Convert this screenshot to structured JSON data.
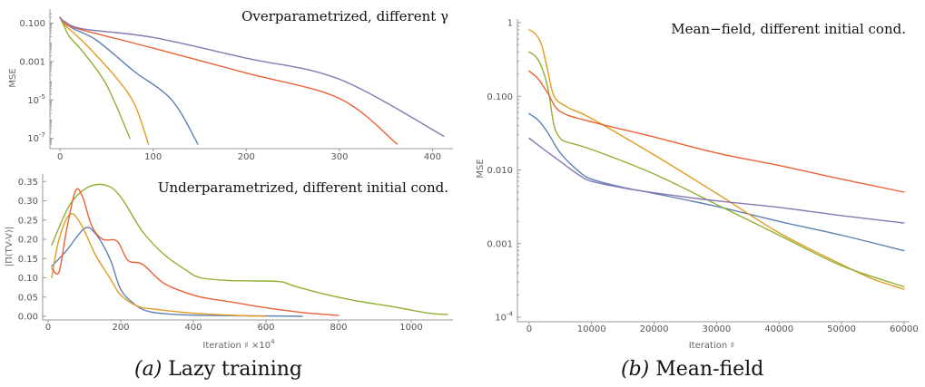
{
  "colors": {
    "blue": "#5e81b5",
    "orange": "#e19c24",
    "green": "#8fb032",
    "red": "#eb6235",
    "purple": "#8778b3"
  },
  "captions": {
    "a_prefix": "(a)",
    "a_text": " Lazy training",
    "b_prefix": "(b)",
    "b_text": " Mean-field"
  },
  "chart_data": [
    {
      "id": "a_top",
      "type": "line",
      "title": "Overparametrized, different γ",
      "xlabel": "",
      "ylabel": "MSE",
      "yscale": "log",
      "xlim": [
        -5,
        420
      ],
      "ylim": [
        5e-08,
        0.35
      ],
      "xticks": [
        0,
        100,
        200,
        300,
        400
      ],
      "yticks": [
        {
          "v": 0.1,
          "label": "0.100"
        },
        {
          "v": 0.001,
          "label": "0.001"
        },
        {
          "v": 1e-05,
          "label": "10",
          "sup": "-5"
        },
        {
          "v": 1e-07,
          "label": "10",
          "sup": "-7"
        }
      ],
      "series": [
        {
          "color": "blue",
          "x": [
            0,
            5,
            15,
            40,
            80,
            120,
            148
          ],
          "y": [
            0.2,
            0.1,
            0.05,
            0.012,
            0.0003,
            1e-05,
            5e-08
          ]
        },
        {
          "color": "orange",
          "x": [
            0,
            5,
            15,
            30,
            60,
            80,
            95
          ],
          "y": [
            0.2,
            0.08,
            0.03,
            0.006,
            0.00015,
            6e-06,
            5e-08
          ]
        },
        {
          "color": "green",
          "x": [
            0,
            5,
            10,
            25,
            50,
            75
          ],
          "y": [
            0.2,
            0.06,
            0.02,
            0.003,
            6e-05,
            1e-07
          ]
        },
        {
          "color": "red",
          "x": [
            0,
            5,
            20,
            100,
            200,
            300,
            362
          ],
          "y": [
            0.2,
            0.1,
            0.05,
            0.005,
            0.00025,
            1.2e-05,
            5e-08
          ]
        },
        {
          "color": "purple",
          "x": [
            0,
            5,
            25,
            100,
            200,
            300,
            412
          ],
          "y": [
            0.2,
            0.12,
            0.05,
            0.018,
            0.0015,
            0.00012,
            1.3e-07
          ]
        }
      ]
    },
    {
      "id": "a_bottom",
      "type": "line",
      "title": "Underparametrized, different initial cond.",
      "xlabel": "Iteration ♯ ×10",
      "xlabel_sup": "4",
      "ylabel": "|Π(TV-V)|",
      "yscale": "linear",
      "xlim": [
        0,
        1110
      ],
      "ylim": [
        0,
        0.36
      ],
      "xticks": [
        0,
        200,
        400,
        600,
        800,
        1000
      ],
      "yticks": [
        {
          "v": 0,
          "label": "0.00"
        },
        {
          "v": 0.05,
          "label": "0.05"
        },
        {
          "v": 0.1,
          "label": "0.10"
        },
        {
          "v": 0.15,
          "label": "0.15"
        },
        {
          "v": 0.2,
          "label": "0.20"
        },
        {
          "v": 0.25,
          "label": "0.25"
        },
        {
          "v": 0.3,
          "label": "0.30"
        },
        {
          "v": 0.35,
          "label": "0.35"
        }
      ],
      "series": [
        {
          "color": "blue",
          "x": [
            10,
            50,
            100,
            130,
            170,
            200,
            240,
            280,
            350,
            450,
            600,
            700
          ],
          "y": [
            0.13,
            0.17,
            0.228,
            0.215,
            0.15,
            0.07,
            0.03,
            0.012,
            0.005,
            0.002,
            0.001,
            0.0
          ]
        },
        {
          "color": "orange",
          "x": [
            10,
            30,
            60,
            90,
            130,
            170,
            200,
            250,
            300,
            400,
            500,
            600
          ],
          "y": [
            0.1,
            0.2,
            0.265,
            0.24,
            0.16,
            0.1,
            0.055,
            0.025,
            0.018,
            0.008,
            0.003,
            0.0
          ]
        },
        {
          "color": "green",
          "x": [
            10,
            60,
            110,
            160,
            200,
            260,
            320,
            380,
            420,
            500,
            560,
            640,
            680,
            760,
            850,
            950,
            1050,
            1100
          ],
          "y": [
            0.185,
            0.29,
            0.335,
            0.34,
            0.31,
            0.22,
            0.16,
            0.12,
            0.1,
            0.093,
            0.092,
            0.09,
            0.078,
            0.058,
            0.04,
            0.025,
            0.008,
            0.005
          ]
        },
        {
          "color": "red",
          "x": [
            10,
            30,
            50,
            75,
            95,
            120,
            150,
            190,
            220,
            260,
            320,
            400,
            450,
            500,
            600,
            700,
            800
          ],
          "y": [
            0.125,
            0.115,
            0.22,
            0.325,
            0.31,
            0.235,
            0.2,
            0.195,
            0.145,
            0.135,
            0.085,
            0.055,
            0.045,
            0.038,
            0.022,
            0.01,
            0.002
          ]
        }
      ]
    },
    {
      "id": "b",
      "type": "line",
      "title": "Mean−field, different initial cond.",
      "xlabel": "Iteration ♯",
      "ylabel": "MSE",
      "yscale": "log",
      "xlim": [
        -1000,
        60600
      ],
      "ylim": [
        0.0001,
        1
      ],
      "xticks": [
        0,
        10000,
        20000,
        30000,
        40000,
        50000,
        60000
      ],
      "xticklabels": [
        "0",
        "10000",
        "20000",
        "30000",
        "40000",
        "50000",
        "60000"
      ],
      "yticks": [
        {
          "v": 1,
          "label": "1"
        },
        {
          "v": 0.1,
          "label": "0.100"
        },
        {
          "v": 0.01,
          "label": "0.010"
        },
        {
          "v": 0.001,
          "label": "0.001"
        },
        {
          "v": 0.0001,
          "label": "10",
          "sup": "-4"
        }
      ],
      "series": [
        {
          "color": "blue",
          "x": [
            0,
            1500,
            3000,
            5000,
            8000,
            10000,
            15000,
            20000,
            30000,
            40000,
            50000,
            60000
          ],
          "y": [
            0.058,
            0.047,
            0.032,
            0.017,
            0.0095,
            0.0075,
            0.0058,
            0.0048,
            0.0032,
            0.002,
            0.0013,
            0.0008
          ]
        },
        {
          "color": "orange",
          "x": [
            0,
            1000,
            2000,
            3000,
            4000,
            6000,
            10000,
            20000,
            30000,
            40000,
            50000,
            55000,
            60000
          ],
          "y": [
            0.8,
            0.7,
            0.5,
            0.22,
            0.1,
            0.072,
            0.05,
            0.016,
            0.0048,
            0.0014,
            0.00052,
            0.00033,
            0.00024
          ]
        },
        {
          "color": "green",
          "x": [
            0,
            1000,
            2000,
            3000,
            4000,
            5000,
            6000,
            10000,
            20000,
            30000,
            40000,
            50000,
            60000
          ],
          "y": [
            0.4,
            0.35,
            0.25,
            0.13,
            0.04,
            0.027,
            0.024,
            0.019,
            0.0088,
            0.0034,
            0.0013,
            0.0005,
            0.00026
          ]
        },
        {
          "color": "red",
          "x": [
            0,
            1500,
            3000,
            5000,
            10000,
            20000,
            30000,
            40000,
            50000,
            60000
          ],
          "y": [
            0.22,
            0.17,
            0.11,
            0.062,
            0.045,
            0.028,
            0.017,
            0.0115,
            0.0075,
            0.005
          ]
        },
        {
          "color": "purple",
          "x": [
            0,
            2000,
            5000,
            8000,
            10000,
            15000,
            20000,
            30000,
            40000,
            50000,
            60000
          ],
          "y": [
            0.027,
            0.02,
            0.013,
            0.0085,
            0.007,
            0.0057,
            0.0049,
            0.0038,
            0.0031,
            0.0024,
            0.0019
          ]
        }
      ]
    }
  ]
}
